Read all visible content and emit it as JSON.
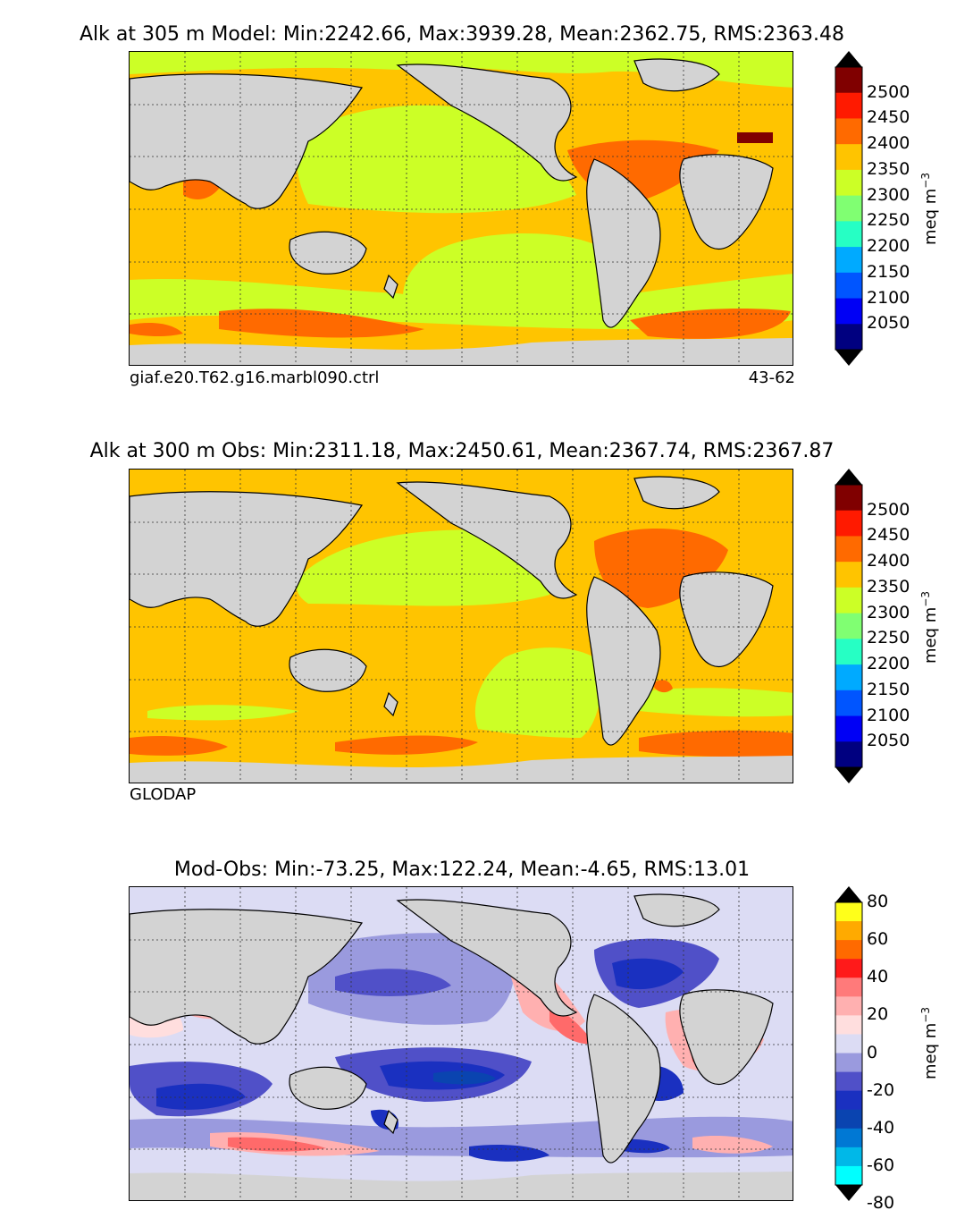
{
  "panels": [
    {
      "title": "Alk at 305 m Model: Min:2242.66, Max:3939.28, Mean:2362.75, RMS:2363.48",
      "footer_left": "giaf.e20.T62.g16.marbl090.ctrl",
      "footer_right": "43-62",
      "cbar_labels": [
        "2500",
        "2450",
        "2400",
        "2350",
        "2300",
        "2250",
        "2200",
        "2150",
        "2100",
        "2050"
      ],
      "cbar_colors": [
        "#800000",
        "#ff1a00",
        "#ff6a00",
        "#ffc400",
        "#ccff26",
        "#80ff72",
        "#26ffc4",
        "#00aaff",
        "#0055ff",
        "#0000f5",
        "#000080"
      ],
      "unit": "meq m",
      "unit_exp": "−3"
    },
    {
      "title": "Alk at 300 m Obs: Min:2311.18, Max:2450.61, Mean:2367.74, RMS:2367.87",
      "footer_left": "GLODAP",
      "footer_right": "",
      "cbar_labels": [
        "2500",
        "2450",
        "2400",
        "2350",
        "2300",
        "2250",
        "2200",
        "2150",
        "2100",
        "2050"
      ],
      "cbar_colors": [
        "#800000",
        "#ff1a00",
        "#ff6a00",
        "#ffc400",
        "#ccff26",
        "#80ff72",
        "#26ffc4",
        "#00aaff",
        "#0055ff",
        "#0000f5",
        "#000080"
      ],
      "unit": "meq m",
      "unit_exp": "−3"
    },
    {
      "title": "Mod-Obs: Min:-73.25, Max:122.24, Mean:-4.65, RMS:13.01",
      "footer_left": "",
      "footer_right": "",
      "cbar_labels": [
        "80",
        "60",
        "40",
        "20",
        "0",
        "-20",
        "-40",
        "-60",
        "-80"
      ],
      "cbar_colors": [
        "#ffff1a",
        "#ffaa00",
        "#ff6a00",
        "#ff1a1a",
        "#ff7a7a",
        "#ffb0b0",
        "#ffdede",
        "#dcdcf4",
        "#9a9ade",
        "#5050c8",
        "#1a30c0",
        "#0a44b0",
        "#0078d4",
        "#00b8e8",
        "#00ffff"
      ],
      "unit": "meq m",
      "unit_exp": "−3"
    }
  ],
  "chart_data": [
    {
      "type": "heatmap",
      "title": "Alk at 305 m Model: Min:2242.66, Max:3939.28, Mean:2362.75, RMS:2363.48",
      "variable": "Alk",
      "depth": "305 m",
      "source": "Model",
      "stats": {
        "min": 2242.66,
        "max": 3939.28,
        "mean": 2362.75,
        "rms": 2363.48
      },
      "colorbar_levels": [
        2050,
        2100,
        2150,
        2200,
        2250,
        2300,
        2350,
        2400,
        2450,
        2500
      ],
      "units": "meq m^-3",
      "run": "giaf.e20.T62.g16.marbl090.ctrl",
      "years": "43-62",
      "colorbar_extend": "both"
    },
    {
      "type": "heatmap",
      "title": "Alk at 300 m Obs: Min:2311.18, Max:2450.61, Mean:2367.74, RMS:2367.87",
      "variable": "Alk",
      "depth": "300 m",
      "source": "Obs",
      "stats": {
        "min": 2311.18,
        "max": 2450.61,
        "mean": 2367.74,
        "rms": 2367.87
      },
      "colorbar_levels": [
        2050,
        2100,
        2150,
        2200,
        2250,
        2300,
        2350,
        2400,
        2450,
        2500
      ],
      "units": "meq m^-3",
      "dataset": "GLODAP",
      "colorbar_extend": "both"
    },
    {
      "type": "heatmap",
      "title": "Mod-Obs: Min:-73.25, Max:122.24, Mean:-4.65, RMS:13.01",
      "variable": "Mod-Obs",
      "stats": {
        "min": -73.25,
        "max": 122.24,
        "mean": -4.65,
        "rms": 13.01
      },
      "colorbar_levels": [
        -80,
        -70,
        -60,
        -50,
        -40,
        -30,
        -20,
        -10,
        0,
        10,
        20,
        30,
        40,
        50,
        60,
        70,
        80
      ],
      "colorbar_labels": [
        -80,
        -60,
        -40,
        -20,
        0,
        20,
        40,
        60,
        80
      ],
      "units": "meq m^-3",
      "colorbar_extend": "both"
    }
  ]
}
